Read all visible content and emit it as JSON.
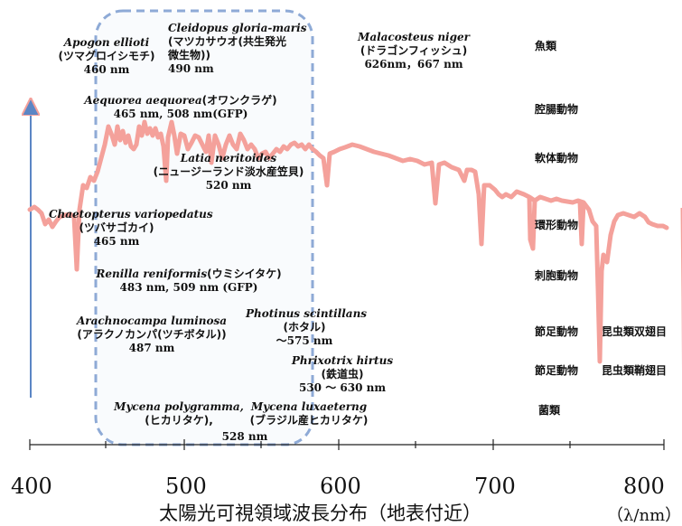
{
  "chart_data": {
    "type": "line",
    "xlabel": "太陽光可視領域波長分布（地表付近）",
    "unit": "（λ/nm）",
    "xlim": [
      400,
      800
    ],
    "ticks": [
      "400",
      "500",
      "600",
      "700",
      "800"
    ],
    "series_color": "#f4a19b",
    "highlight_range": [
      450,
      570
    ]
  },
  "organisms": [
    {
      "sci": "Apogon ellioti",
      "jp": "(ツマグロイシモチ)",
      "nm": "460 nm"
    },
    {
      "sci": "Cleidopus gloria-maris",
      "jp1": "(マツカサウオ(共生発光",
      "jp2": "微生物))",
      "nm": "490 nm"
    },
    {
      "sci": "Malacosteus niger",
      "jp": "(ドラゴンフィッシュ)",
      "nm": "626nm，667 nm"
    },
    {
      "sci": "Aequorea aequorea",
      "jp": "(オワンクラゲ)",
      "nm": "465 nm, 508 nm(GFP)"
    },
    {
      "sci": "Latia neritoides",
      "jp": "(ニュージーランド淡水産笠貝)",
      "nm": "520 nm"
    },
    {
      "sci": "Chaetopterus variopedatus",
      "jp": "(ツバサゴカイ)",
      "nm": "465 nm"
    },
    {
      "sci": "Renilla reniformis",
      "jp": "(ウミシイタケ)",
      "nm": "483 nm, 509 nm (GFP)"
    },
    {
      "sci": "Arachnocampa luminosa",
      "jp": "(アラクノカンパ(ツチボタル))",
      "nm": "487 nm"
    },
    {
      "sci": "Photinus scintillans",
      "jp": "(ホタル)",
      "nm": "～575  nm"
    },
    {
      "sci": "Phrixotrix hirtus",
      "jp": "(鉄道虫)",
      "nm": "530 ～ 630 nm"
    },
    {
      "sci": "Mycena polygramma,",
      "jp": "(ヒカリタケ),",
      "nm": "528 nm"
    },
    {
      "sci": "Mycena luxaeterng",
      "jp": "(ブラジル産ヒカリタケ)"
    }
  ],
  "categories": [
    "魚類",
    "腔腸動物",
    "軟体動物",
    "環形動物",
    "刺胞動物",
    "節足動物",
    "昆虫類双翅目",
    "節足動物",
    "昆虫類鞘翅目",
    "菌類"
  ]
}
